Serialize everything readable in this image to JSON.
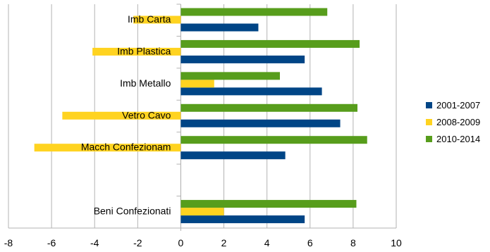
{
  "chart_data": {
    "type": "bar",
    "orientation": "horizontal",
    "categories": [
      "Imb Carta",
      "Imb Plastica",
      "Imb Metallo",
      "Vetro Cavo",
      "Macch Confezionam",
      "",
      "Beni Confezionati"
    ],
    "series": [
      {
        "name": "2001-2007",
        "color": "#004586",
        "values": [
          3.6,
          5.75,
          6.55,
          7.4,
          4.85,
          null,
          5.75
        ]
      },
      {
        "name": "2008-2009",
        "color": "#ffd320",
        "values": [
          -2.2,
          -4.1,
          1.55,
          -5.5,
          -6.8,
          null,
          2.0
        ]
      },
      {
        "name": "2010-2014",
        "color": "#579d1c",
        "values": [
          6.8,
          8.3,
          4.6,
          8.2,
          8.65,
          null,
          8.15
        ]
      }
    ],
    "xlim": [
      -8,
      10
    ],
    "xticks": [
      "-8",
      "-6",
      "-4",
      "-2",
      "0",
      "2",
      "4",
      "6",
      "8",
      "10"
    ],
    "grid": true,
    "legend_position": "right"
  }
}
